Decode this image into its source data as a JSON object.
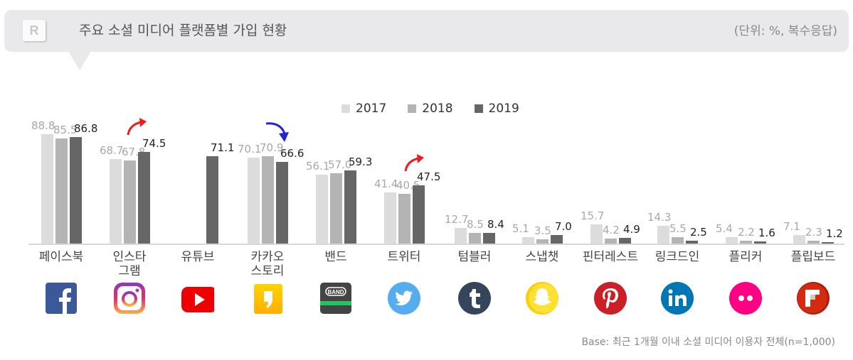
{
  "header": {
    "logo_letter": "R",
    "title": "주요 소셜 미디어 플랫폼별 가입 현황",
    "unit": "(단위: %, 복수응답)"
  },
  "legend": [
    {
      "label": "2017",
      "color": "#dcdcdc"
    },
    {
      "label": "2018",
      "color": "#b4b4b4"
    },
    {
      "label": "2019",
      "color": "#666666"
    }
  ],
  "categories": [
    {
      "label_line1": "페이스북",
      "label_line2": "",
      "icon": "facebook-icon"
    },
    {
      "label_line1": "인스타",
      "label_line2": "그램",
      "icon": "instagram-icon"
    },
    {
      "label_line1": "유튜브",
      "label_line2": "",
      "icon": "youtube-icon"
    },
    {
      "label_line1": "카카오",
      "label_line2": "스토리",
      "icon": "kakaostory-icon"
    },
    {
      "label_line1": "밴드",
      "label_line2": "",
      "icon": "band-icon"
    },
    {
      "label_line1": "트위터",
      "label_line2": "",
      "icon": "twitter-icon"
    },
    {
      "label_line1": "텀블러",
      "label_line2": "",
      "icon": "tumblr-icon"
    },
    {
      "label_line1": "스냅챗",
      "label_line2": "",
      "icon": "snapchat-icon"
    },
    {
      "label_line1": "핀터레스트",
      "label_line2": "",
      "icon": "pinterest-icon"
    },
    {
      "label_line1": "링크드인",
      "label_line2": "",
      "icon": "linkedin-icon"
    },
    {
      "label_line1": "플리커",
      "label_line2": "",
      "icon": "flickr-icon"
    },
    {
      "label_line1": "플립보드",
      "label_line2": "",
      "icon": "flipboard-icon"
    }
  ],
  "values": [
    {
      "v2017": "88.8",
      "v2018": "85.5",
      "v2019": "86.8"
    },
    {
      "v2017": "68.7",
      "v2018": "67.8",
      "v2019": "74.5"
    },
    {
      "v2017": "",
      "v2018": "",
      "v2019": "71.1"
    },
    {
      "v2017": "70.1",
      "v2018": "70.9",
      "v2019": "66.6"
    },
    {
      "v2017": "56.1",
      "v2018": "57.0",
      "v2019": "59.3"
    },
    {
      "v2017": "41.4",
      "v2018": "40.5",
      "v2019": "47.5"
    },
    {
      "v2017": "12.7",
      "v2018": "8.5",
      "v2019": "8.4"
    },
    {
      "v2017": "5.1",
      "v2018": "3.5",
      "v2019": "7.0"
    },
    {
      "v2017": "15.7",
      "v2018": "4.2",
      "v2019": "4.9"
    },
    {
      "v2017": "14.3",
      "v2018": "5.5",
      "v2019": "2.5"
    },
    {
      "v2017": "5.4",
      "v2018": "2.2",
      "v2019": "1.6"
    },
    {
      "v2017": "7.1",
      "v2018": "2.3",
      "v2019": "1.2"
    }
  ],
  "trend_arrows": [
    {
      "category": "인스타그램",
      "direction": "up",
      "color": "#ee1c1c"
    },
    {
      "category": "카카오스토리",
      "direction": "down",
      "color": "#2222dd"
    },
    {
      "category": "트위터",
      "direction": "up",
      "color": "#ee1c1c"
    }
  ],
  "footer": {
    "base_note": "Base: 최근 1개월 이내 소셜 미디어 이용자 전체(n=1,000)"
  },
  "chart_data": {
    "type": "bar",
    "title": "주요 소셜 미디어 플랫폼별 가입 현황",
    "subtitle": "(단위: %, 복수응답)",
    "xlabel": "",
    "ylabel": "%",
    "categories": [
      "페이스북",
      "인스타그램",
      "유튜브",
      "카카오스토리",
      "밴드",
      "트위터",
      "텀블러",
      "스냅챗",
      "핀터레스트",
      "링크드인",
      "플리커",
      "플립보드"
    ],
    "series": [
      {
        "name": "2017",
        "values": [
          88.8,
          68.7,
          null,
          70.1,
          56.1,
          41.4,
          12.7,
          5.1,
          15.7,
          14.3,
          5.4,
          7.1
        ]
      },
      {
        "name": "2018",
        "values": [
          85.5,
          67.8,
          null,
          70.9,
          57.0,
          40.5,
          8.5,
          3.5,
          4.2,
          5.5,
          2.2,
          2.3
        ]
      },
      {
        "name": "2019",
        "values": [
          86.8,
          74.5,
          71.1,
          66.6,
          59.3,
          47.5,
          8.4,
          7.0,
          4.9,
          2.5,
          1.6,
          1.2
        ]
      }
    ],
    "legend_position": "top",
    "grid": false,
    "ylim": [
      0,
      100
    ],
    "annotations": [
      "인스타그램 ↑ (red)",
      "카카오스토리 ↓ (blue)",
      "트위터 ↑ (red)"
    ],
    "note": "Base: 최근 1개월 이내 소셜 미디어 이용자 전체(n=1,000)"
  }
}
